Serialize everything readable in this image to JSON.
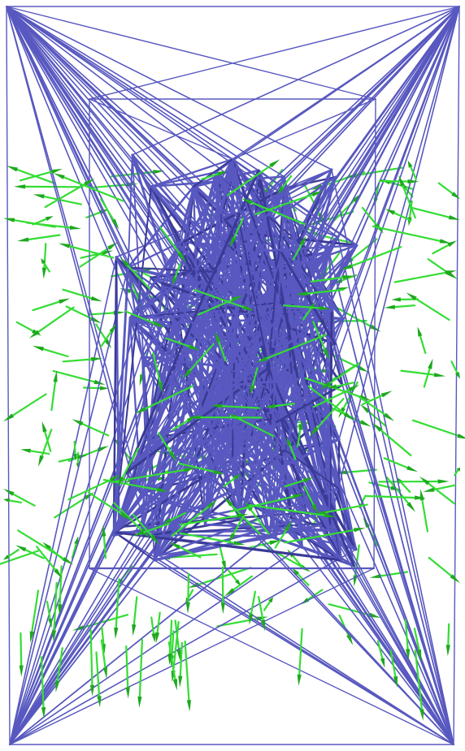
{
  "colors": {
    "background": "#ffffff",
    "edge": "#5858c0",
    "edge_dark": "#3a3a96",
    "vector": "#33dd33",
    "vector_dark": "#1fa81f"
  },
  "scene": {
    "kind": "3d-mesh-wireframe-with-vector-glyphs",
    "seed": 7
  }
}
